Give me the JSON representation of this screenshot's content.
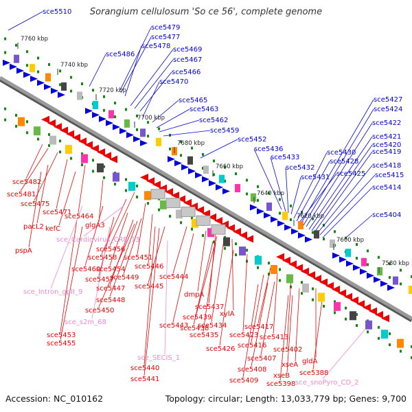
{
  "title": "Sorangium cellulosum 'So ce 56', complete genome",
  "footer": {
    "accession": "Accession: NC_010162",
    "summary": "Topology: circular; Length: 13,033,779 bp; Genes: 9,700"
  },
  "colors": {
    "forward_gene": "#0000dd",
    "reverse_gene": "#ee0000",
    "rna_label": "#ee88cc",
    "backbone": "#888888",
    "tick_dot": "#118811"
  },
  "kbp_ticks": [
    "7760 kbp",
    "7740 kbp",
    "7720 kbp",
    "7700 kbp",
    "7680 kbp",
    "7660 kbp",
    "7640 kbp",
    "7620 kbp",
    "7600 kbp",
    "7580 kbp"
  ],
  "forward_labels": [
    "sce5510",
    "sce5479",
    "sce5477",
    "sce5486",
    "sce5478",
    "sce5469",
    "sce5467",
    "sce5466",
    "sce5470",
    "sce5465",
    "sce5463",
    "sce5462",
    "sce5459",
    "sce5452",
    "sce5436",
    "sce5433",
    "sce5432",
    "sce5431",
    "sce5430",
    "sce5428",
    "sce5425",
    "sce5427",
    "sce5424",
    "sce5422",
    "sce5421",
    "sce5420",
    "sce5419",
    "sce5418",
    "sce5415",
    "sce5414",
    "sce5404"
  ],
  "reverse_labels": [
    "sce5482",
    "sce5481",
    "sce5475",
    "sce5471",
    "sce5464",
    "pacL2",
    "kefC",
    "glgA3",
    "pspA",
    "sce5456",
    "sce5458",
    "sce5451",
    "sce5460",
    "sce5454",
    "sce5446",
    "sce5457",
    "sce5449",
    "sce5447",
    "sce5448",
    "sce5450",
    "sce5444",
    "sce5445",
    "dmpA",
    "sce5437",
    "sce5439",
    "xylA",
    "sce5434",
    "sce5443",
    "sce5438",
    "sce5435",
    "sce5423",
    "sce5417",
    "sce5413",
    "sce5416",
    "sce5426",
    "sce5402",
    "sce5407",
    "xseA",
    "gldA",
    "sce5408",
    "xseB",
    "sce5388",
    "sce5409",
    "sce5398",
    "sce5453",
    "sce5455",
    "sce5440",
    "sce5441"
  ],
  "rna_labels": [
    "sce_Cardiovirus_CRE_13",
    "sce_Intron_gpII_9",
    "sce_s2m_68",
    "sce_SECIS_1",
    "sce_snoPyro_CD_2"
  ]
}
